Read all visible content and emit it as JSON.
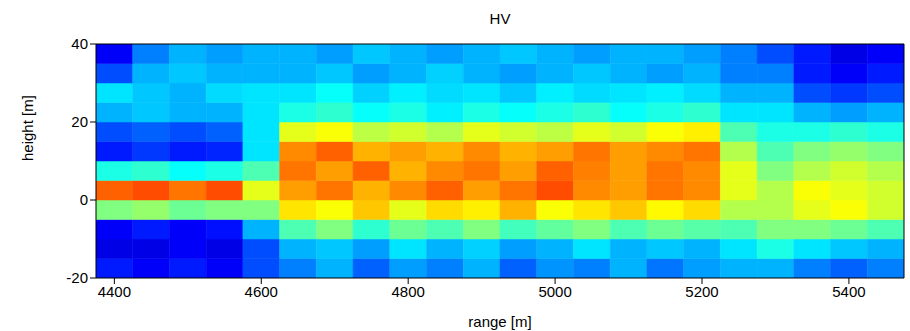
{
  "chart_data": {
    "type": "heatmap",
    "title": "HV",
    "x_label": "range [m]",
    "y_label": "height [m]",
    "xlim": [
      4375,
      5475
    ],
    "xticks": [
      4400,
      4600,
      4800,
      5000,
      5200,
      5400
    ],
    "ylim": [
      -20,
      40
    ],
    "yticks": [
      -20,
      0,
      20,
      40
    ],
    "x_edges": [
      4375,
      4425,
      4475,
      4525,
      4575,
      4625,
      4675,
      4725,
      4775,
      4825,
      4875,
      4925,
      4975,
      5025,
      5075,
      5125,
      5175,
      5225,
      5275,
      5325,
      5375,
      5425,
      5475
    ],
    "y_edges": [
      -20,
      -15,
      -10,
      -5,
      0,
      5,
      10,
      15,
      20,
      25,
      30,
      35,
      40
    ],
    "color_range": [
      0,
      1
    ],
    "cells": [
      [
        0.15,
        0.12,
        0.15,
        0.12,
        0.2,
        0.25,
        0.3,
        0.22,
        0.28,
        0.25,
        0.3,
        0.22,
        0.27,
        0.25,
        0.3,
        0.24,
        0.28,
        0.3,
        0.3,
        0.25,
        0.22,
        0.25
      ],
      [
        0.1,
        0.1,
        0.12,
        0.1,
        0.2,
        0.3,
        0.32,
        0.28,
        0.35,
        0.3,
        0.33,
        0.28,
        0.3,
        0.35,
        0.3,
        0.32,
        0.3,
        0.35,
        0.4,
        0.35,
        0.32,
        0.3
      ],
      [
        0.12,
        0.15,
        0.12,
        0.14,
        0.3,
        0.45,
        0.5,
        0.42,
        0.48,
        0.45,
        0.5,
        0.44,
        0.47,
        0.5,
        0.45,
        0.48,
        0.46,
        0.45,
        0.5,
        0.5,
        0.48,
        0.45
      ],
      [
        0.5,
        0.52,
        0.48,
        0.5,
        0.5,
        0.65,
        0.62,
        0.68,
        0.6,
        0.66,
        0.64,
        0.7,
        0.62,
        0.65,
        0.68,
        0.63,
        0.66,
        0.55,
        0.55,
        0.6,
        0.62,
        0.58
      ],
      [
        0.78,
        0.8,
        0.76,
        0.8,
        0.6,
        0.72,
        0.76,
        0.7,
        0.74,
        0.78,
        0.72,
        0.76,
        0.8,
        0.74,
        0.72,
        0.76,
        0.74,
        0.6,
        0.55,
        0.62,
        0.6,
        0.58
      ],
      [
        0.4,
        0.42,
        0.38,
        0.4,
        0.45,
        0.76,
        0.72,
        0.78,
        0.7,
        0.74,
        0.76,
        0.72,
        0.78,
        0.75,
        0.72,
        0.76,
        0.74,
        0.6,
        0.5,
        0.55,
        0.58,
        0.55
      ],
      [
        0.15,
        0.18,
        0.15,
        0.16,
        0.35,
        0.74,
        0.78,
        0.7,
        0.72,
        0.7,
        0.74,
        0.7,
        0.72,
        0.76,
        0.72,
        0.74,
        0.76,
        0.55,
        0.45,
        0.5,
        0.52,
        0.5
      ],
      [
        0.2,
        0.22,
        0.2,
        0.22,
        0.35,
        0.6,
        0.62,
        0.56,
        0.58,
        0.55,
        0.6,
        0.58,
        0.56,
        0.6,
        0.58,
        0.62,
        0.64,
        0.45,
        0.4,
        0.4,
        0.42,
        0.4
      ],
      [
        0.3,
        0.32,
        0.3,
        0.3,
        0.35,
        0.4,
        0.42,
        0.38,
        0.4,
        0.36,
        0.4,
        0.38,
        0.4,
        0.42,
        0.38,
        0.4,
        0.42,
        0.35,
        0.35,
        0.3,
        0.28,
        0.3
      ],
      [
        0.35,
        0.32,
        0.3,
        0.34,
        0.35,
        0.35,
        0.38,
        0.33,
        0.36,
        0.34,
        0.35,
        0.32,
        0.36,
        0.34,
        0.35,
        0.36,
        0.34,
        0.3,
        0.3,
        0.2,
        0.18,
        0.2
      ],
      [
        0.2,
        0.3,
        0.32,
        0.3,
        0.3,
        0.3,
        0.32,
        0.28,
        0.3,
        0.33,
        0.3,
        0.28,
        0.3,
        0.32,
        0.3,
        0.28,
        0.3,
        0.25,
        0.25,
        0.15,
        0.12,
        0.15
      ],
      [
        0.12,
        0.25,
        0.3,
        0.28,
        0.3,
        0.3,
        0.28,
        0.32,
        0.3,
        0.28,
        0.3,
        0.32,
        0.3,
        0.28,
        0.3,
        0.3,
        0.28,
        0.25,
        0.2,
        0.15,
        0.1,
        0.12
      ]
    ]
  }
}
